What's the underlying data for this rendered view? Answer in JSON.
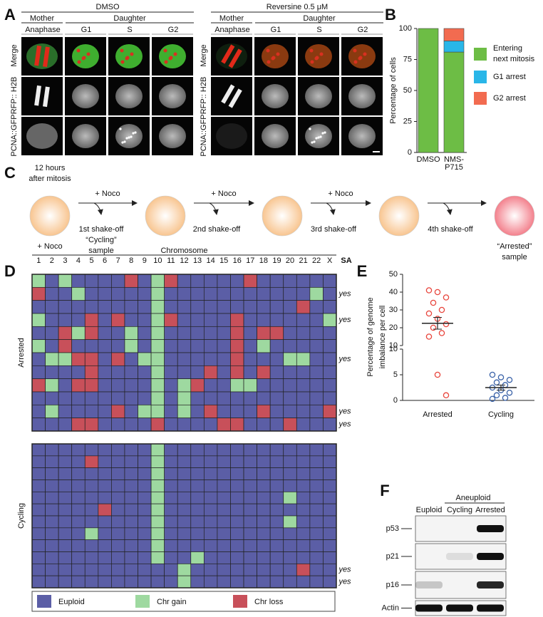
{
  "panel_labels": [
    "A",
    "B",
    "C",
    "D",
    "E",
    "F"
  ],
  "panel_a": {
    "groups": [
      {
        "title": "DMSO",
        "mother": "Mother",
        "daughter": "Daughter",
        "columns": [
          "Anaphase",
          "G1",
          "S",
          "G2"
        ]
      },
      {
        "title": "Reversine 0.5 μM",
        "mother": "Mother",
        "daughter": "Daughter",
        "columns": [
          "Anaphase",
          "G1",
          "S",
          "G2"
        ]
      }
    ],
    "rows": [
      "Merge",
      "RFP:: H2B",
      "PCNA::GFP"
    ]
  },
  "panel_b": {
    "type": "bar",
    "stacked": true,
    "ylabel": "Percentage of cells",
    "categories": [
      "DMSO",
      "NMS-P715"
    ],
    "series": [
      {
        "name": "Entering next mitosis",
        "color": "#6dbd45",
        "values": [
          100,
          81
        ]
      },
      {
        "name": "G1 arrest",
        "color": "#29b6e8",
        "values": [
          0,
          9
        ]
      },
      {
        "name": "G2 arrest",
        "color": "#f26b50",
        "values": [
          0,
          10
        ]
      }
    ],
    "ylim": [
      0,
      100
    ],
    "yticks": [
      0,
      25,
      50,
      75,
      100
    ]
  },
  "panel_c": {
    "start": [
      "12 hours",
      "after mitosis"
    ],
    "start_treatment": "+ Noco",
    "steps": [
      {
        "treatment": "+ Noco",
        "label": [
          "1st shake-off",
          "“Cycling”",
          "sample"
        ]
      },
      {
        "treatment": "+ Noco",
        "label": [
          "2nd shake-off"
        ]
      },
      {
        "treatment": "+ Noco",
        "label": [
          "3rd shake-off"
        ]
      },
      {
        "treatment": null,
        "label": [
          "4th shake-off"
        ]
      }
    ],
    "end": [
      "“Arrested”",
      "sample"
    ]
  },
  "panel_d": {
    "axis_title": "Chromosome",
    "columns": [
      "1",
      "2",
      "3",
      "4",
      "5",
      "6",
      "7",
      "8",
      "9",
      "10",
      "11",
      "12",
      "13",
      "14",
      "15",
      "16",
      "17",
      "18",
      "19",
      "20",
      "21",
      "22",
      "X"
    ],
    "sa_header": "SA",
    "legend": [
      "Euploid",
      "Chr gain",
      "Chr loss"
    ],
    "colors": [
      "#5b5ea6",
      "#9ed9a0",
      "#c8505a"
    ],
    "groups": [
      {
        "name": "Arrested",
        "rows": [
          [
            1,
            0,
            1,
            0,
            0,
            0,
            0,
            2,
            0,
            1,
            2,
            0,
            0,
            0,
            0,
            0,
            2,
            0,
            0,
            0,
            0,
            0,
            0
          ],
          [
            2,
            0,
            0,
            1,
            0,
            0,
            0,
            0,
            0,
            1,
            0,
            0,
            0,
            0,
            0,
            0,
            0,
            0,
            0,
            0,
            0,
            1,
            0
          ],
          [
            0,
            0,
            0,
            0,
            0,
            0,
            0,
            0,
            0,
            1,
            0,
            0,
            0,
            0,
            0,
            0,
            0,
            0,
            0,
            0,
            2,
            0,
            0
          ],
          [
            1,
            0,
            0,
            0,
            2,
            0,
            2,
            0,
            0,
            1,
            2,
            0,
            0,
            0,
            0,
            2,
            0,
            0,
            0,
            0,
            0,
            0,
            1
          ],
          [
            0,
            0,
            2,
            1,
            2,
            0,
            0,
            1,
            0,
            1,
            0,
            0,
            0,
            0,
            0,
            2,
            0,
            2,
            2,
            0,
            0,
            0,
            0
          ],
          [
            1,
            0,
            2,
            0,
            0,
            0,
            0,
            1,
            0,
            1,
            0,
            0,
            0,
            0,
            0,
            2,
            0,
            1,
            0,
            0,
            0,
            0,
            0
          ],
          [
            0,
            1,
            1,
            2,
            2,
            0,
            2,
            0,
            1,
            1,
            0,
            0,
            0,
            0,
            0,
            2,
            0,
            0,
            0,
            1,
            1,
            0,
            0
          ],
          [
            0,
            0,
            0,
            0,
            2,
            0,
            0,
            0,
            0,
            1,
            0,
            0,
            0,
            2,
            0,
            2,
            0,
            2,
            0,
            0,
            0,
            0,
            0
          ],
          [
            2,
            1,
            0,
            2,
            2,
            0,
            0,
            0,
            0,
            1,
            0,
            1,
            2,
            0,
            0,
            1,
            1,
            0,
            0,
            0,
            0,
            0,
            0
          ],
          [
            0,
            0,
            0,
            0,
            0,
            0,
            0,
            0,
            0,
            1,
            0,
            1,
            0,
            0,
            0,
            0,
            0,
            0,
            0,
            0,
            0,
            0,
            0
          ],
          [
            0,
            1,
            0,
            0,
            0,
            0,
            2,
            0,
            1,
            1,
            0,
            1,
            0,
            2,
            0,
            0,
            0,
            2,
            0,
            0,
            0,
            0,
            2
          ],
          [
            0,
            0,
            0,
            2,
            2,
            0,
            0,
            0,
            0,
            2,
            0,
            0,
            0,
            0,
            2,
            2,
            0,
            0,
            0,
            2,
            0,
            0,
            0
          ]
        ],
        "sa": [
          null,
          "yes",
          null,
          "yes",
          null,
          null,
          "yes",
          null,
          null,
          null,
          "yes",
          "yes"
        ]
      },
      {
        "name": "Cycling",
        "rows": [
          [
            0,
            0,
            0,
            0,
            0,
            0,
            0,
            0,
            0,
            1,
            0,
            0,
            0,
            0,
            0,
            0,
            0,
            0,
            0,
            0,
            0,
            0,
            0
          ],
          [
            0,
            0,
            0,
            0,
            2,
            0,
            0,
            0,
            0,
            1,
            0,
            0,
            0,
            0,
            0,
            0,
            0,
            0,
            0,
            0,
            0,
            0,
            0
          ],
          [
            0,
            0,
            0,
            0,
            0,
            0,
            0,
            0,
            0,
            1,
            0,
            0,
            0,
            0,
            0,
            0,
            0,
            0,
            0,
            0,
            0,
            0,
            0
          ],
          [
            0,
            0,
            0,
            0,
            0,
            0,
            0,
            0,
            0,
            1,
            0,
            0,
            0,
            0,
            0,
            0,
            0,
            0,
            0,
            0,
            0,
            0,
            0
          ],
          [
            0,
            0,
            0,
            0,
            0,
            0,
            0,
            0,
            0,
            1,
            0,
            0,
            0,
            0,
            0,
            0,
            0,
            0,
            0,
            1,
            0,
            0,
            0
          ],
          [
            0,
            0,
            0,
            0,
            0,
            2,
            0,
            0,
            0,
            1,
            0,
            0,
            0,
            0,
            0,
            0,
            0,
            0,
            0,
            0,
            0,
            0,
            0
          ],
          [
            0,
            0,
            0,
            0,
            0,
            0,
            0,
            0,
            0,
            1,
            0,
            0,
            0,
            0,
            0,
            0,
            0,
            0,
            0,
            1,
            0,
            0,
            0
          ],
          [
            0,
            0,
            0,
            0,
            1,
            0,
            0,
            0,
            0,
            1,
            0,
            0,
            0,
            0,
            0,
            0,
            0,
            0,
            0,
            0,
            0,
            0,
            0
          ],
          [
            0,
            0,
            0,
            0,
            0,
            0,
            0,
            0,
            0,
            1,
            0,
            0,
            0,
            0,
            0,
            0,
            0,
            0,
            0,
            0,
            0,
            0,
            0
          ],
          [
            0,
            0,
            0,
            0,
            0,
            0,
            0,
            0,
            0,
            1,
            0,
            0,
            1,
            0,
            0,
            0,
            0,
            0,
            0,
            0,
            0,
            0,
            0
          ],
          [
            0,
            0,
            0,
            0,
            0,
            0,
            0,
            0,
            0,
            0,
            0,
            1,
            0,
            0,
            0,
            0,
            0,
            0,
            0,
            0,
            2,
            0,
            0
          ],
          [
            0,
            0,
            0,
            0,
            0,
            0,
            0,
            0,
            0,
            0,
            0,
            1,
            0,
            0,
            0,
            0,
            0,
            0,
            0,
            0,
            0,
            0,
            0
          ]
        ],
        "sa": [
          null,
          null,
          null,
          null,
          null,
          null,
          null,
          null,
          null,
          null,
          "yes",
          "yes"
        ]
      }
    ]
  },
  "panel_e": {
    "type": "scatter",
    "ylabel": [
      "Percentage of genome",
      "imbalance per cell"
    ],
    "categories": [
      "Arrested",
      "Cycling"
    ],
    "series": [
      {
        "color": "#e8453c",
        "values": [
          41,
          40,
          37,
          34,
          30,
          28,
          25,
          22,
          20,
          17,
          15,
          5,
          1
        ]
      },
      {
        "color": "#3a62a8",
        "values": [
          5,
          4.5,
          4,
          3.5,
          3,
          2.5,
          2,
          1.5,
          1,
          0.5,
          0.3
        ]
      }
    ],
    "means": [
      22.5,
      2.5
    ],
    "sems": [
      3.3,
      0.5
    ],
    "upper": {
      "ylim": [
        10,
        50
      ],
      "yticks": [
        10,
        20,
        30,
        40,
        50
      ]
    },
    "lower": {
      "ylim": [
        0,
        10
      ],
      "yticks": [
        0,
        5,
        10
      ]
    }
  },
  "panel_f": {
    "header": "Aneuploid",
    "lanes": [
      "Euploid",
      "Cycling",
      "Arrested"
    ],
    "rows": [
      "p53",
      "p21",
      "p16",
      "Actin"
    ],
    "bands": [
      [
        0,
        0,
        1
      ],
      [
        0,
        0.1,
        1
      ],
      [
        0.2,
        0,
        0.9
      ],
      [
        1,
        1,
        1
      ]
    ]
  }
}
